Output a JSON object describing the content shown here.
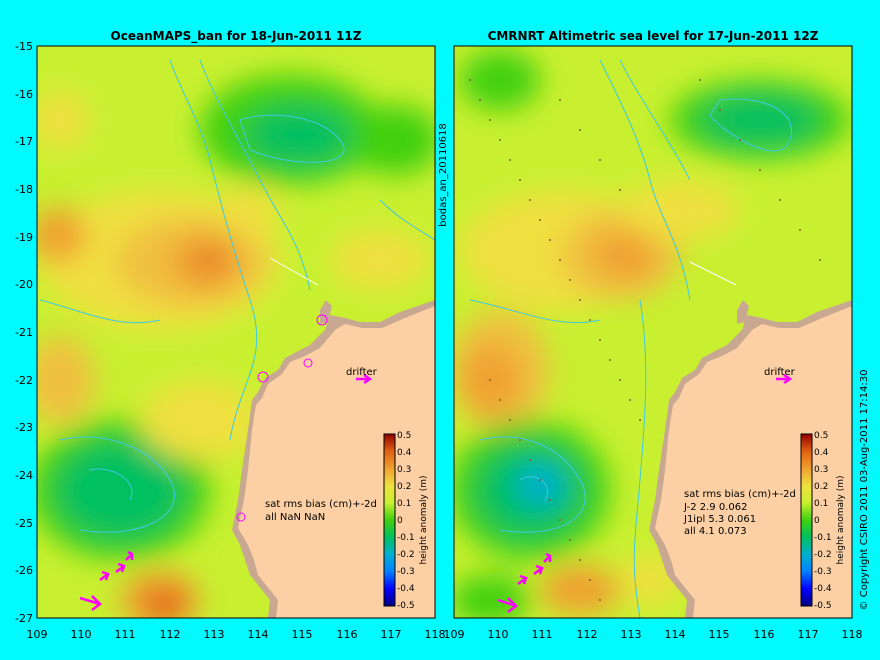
{
  "left_panel": {
    "title": "OceanMAPS_ban for 18-Jun-2011 11Z",
    "drifter_label": "drifter",
    "stats_header": "sat rms bias (cm)+-2d",
    "stats_rows": [
      "all NaN NaN"
    ]
  },
  "right_panel": {
    "title": "CMRNRT Altimetric sea level  for 17-Jun-2011 12Z",
    "drifter_label": "drifter",
    "stats_header": "sat rms bias (cm)+-2d",
    "stats_rows": [
      "J-2   2.9 0.062",
      "J1ipl 5.3 0.061",
      "all 4.1 0.073"
    ]
  },
  "side_label": "bodas_an_20110618",
  "copyright": "© Copyright CSIRO 2011  03-Aug-2011 17:14:30",
  "colorbar": {
    "label": "height anomaly (m)",
    "ticks": [
      "0.5",
      "0.4",
      "0.3",
      "0.2",
      "0.1",
      "0",
      "-0.1",
      "-0.2",
      "-0.3",
      "-0.4",
      "-0.5"
    ],
    "range": [
      -0.5,
      0.5
    ],
    "colors": [
      "#000080",
      "#0000ff",
      "#0080ff",
      "#00b0d0",
      "#00c060",
      "#40d010",
      "#c8f030",
      "#f0e040",
      "#f0a030",
      "#e06010",
      "#900000"
    ]
  },
  "x_ticks": [
    "109",
    "110",
    "111",
    "112",
    "113",
    "114",
    "115",
    "116",
    "117",
    "118"
  ],
  "y_ticks": [
    "-15",
    "-16",
    "-17",
    "-18",
    "-19",
    "-20",
    "-21",
    "-22",
    "-23",
    "-24",
    "-25",
    "-26",
    "-27"
  ],
  "axis_ranges": {
    "lon": [
      109,
      118
    ],
    "lat": [
      -27,
      -15
    ]
  },
  "colors": {
    "background": "#00fbff",
    "land": "#fcd0a4",
    "shelf": "#c8a890",
    "contour": "#40c8e0",
    "ocean_base": "#c8f030",
    "drifter_arrow": "#ff00ff"
  }
}
